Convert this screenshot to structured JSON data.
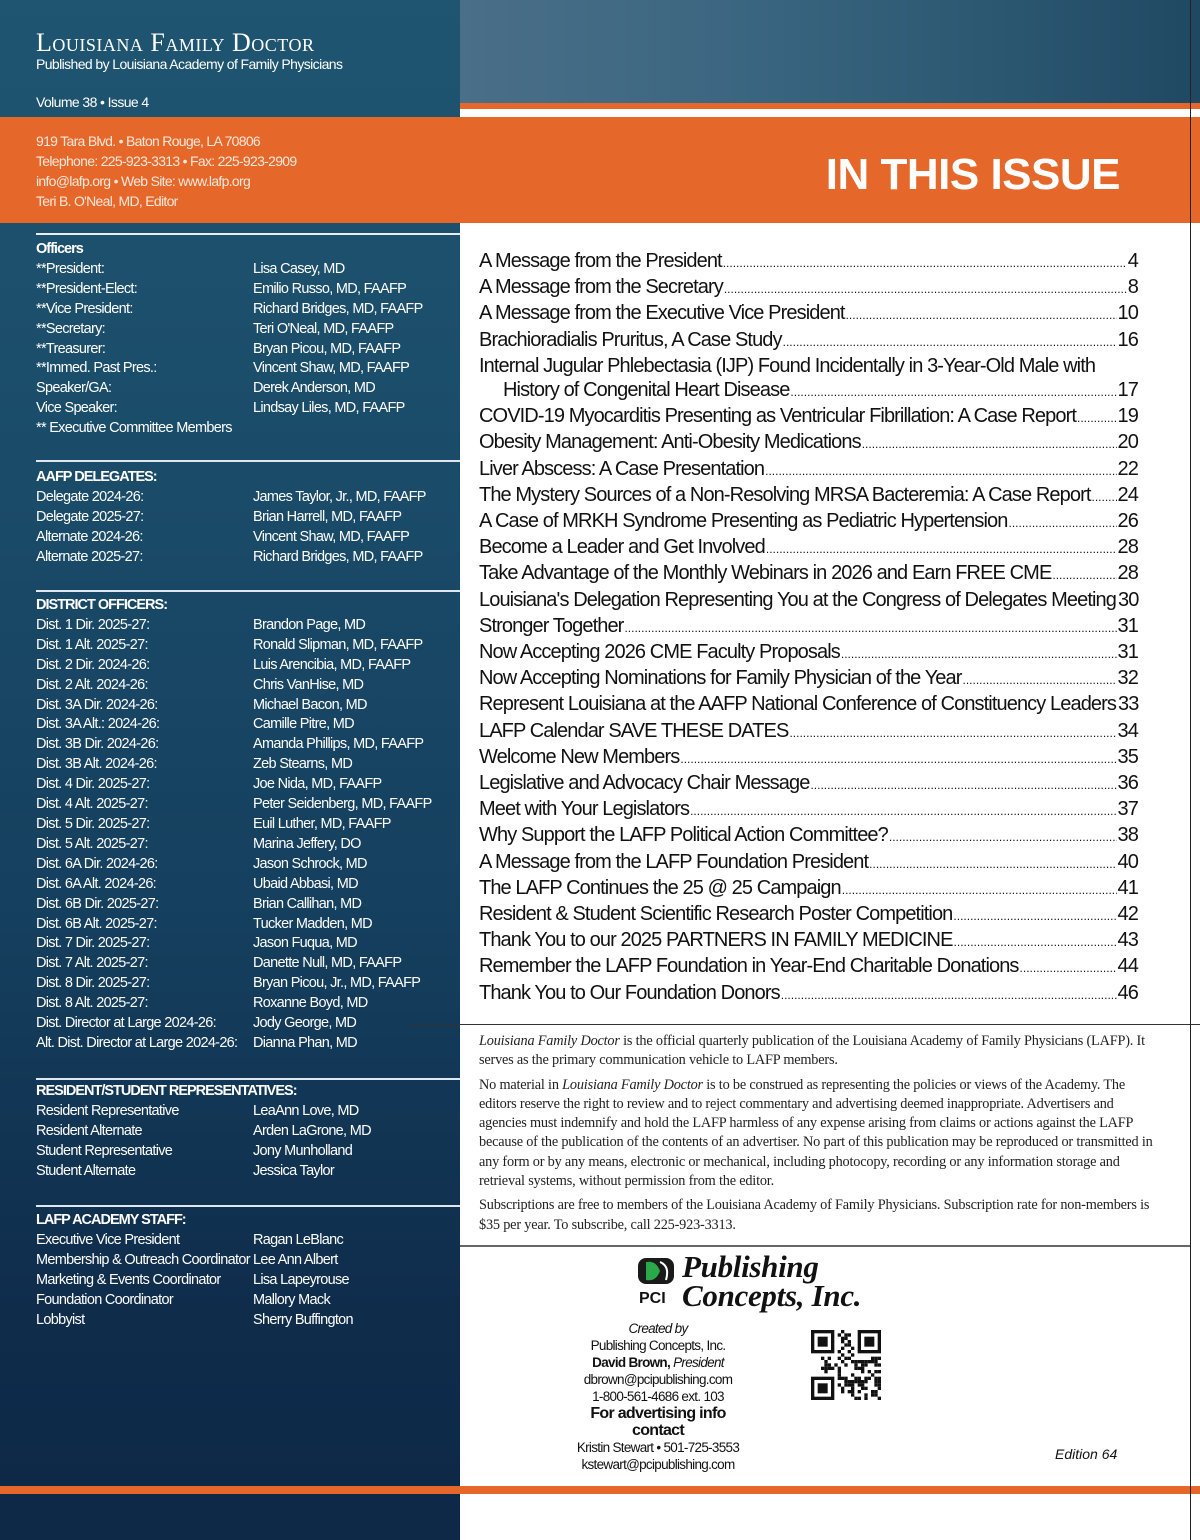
{
  "masthead": {
    "title": "Louisiana Family Doctor",
    "subtitle": "Published by Louisiana Academy of Family Physicians",
    "volume": "Volume 38 • Issue 4",
    "contact_lines": [
      "919 Tara Blvd. • Baton Rouge, LA 70806",
      "Telephone: 225-923-3313  • Fax: 225-923-2909",
      "info@lafp.org • Web Site: www.lafp.org",
      "Teri B. O'Neal, MD, Editor"
    ]
  },
  "banner": {
    "title": "IN THIS ISSUE"
  },
  "colors": {
    "orange": "#e5672a",
    "navy": "#153f5e"
  },
  "sections": [
    {
      "heading": "Officers",
      "rows": [
        [
          "**President:",
          "Lisa Casey, MD"
        ],
        [
          "**President-Elect:",
          "Emilio Russo, MD, FAAFP"
        ],
        [
          "**Vice President:",
          "Richard Bridges, MD, FAAFP"
        ],
        [
          "**Secretary:",
          "Teri O'Neal, MD, FAAFP"
        ],
        [
          "**Treasurer:",
          "Bryan Picou, MD, FAAFP"
        ],
        [
          "**Immed. Past Pres.:",
          "Vincent Shaw, MD, FAAFP"
        ],
        [
          "Speaker/GA:",
          "Derek Anderson, MD"
        ],
        [
          "Vice Speaker:",
          "Lindsay Liles, MD, FAAFP"
        ],
        [
          "** Executive Committee Members",
          ""
        ]
      ]
    },
    {
      "heading": "AAFP DELEGATES:",
      "rows": [
        [
          "Delegate  2024-26:",
          "James Taylor, Jr., MD, FAAFP"
        ],
        [
          "Delegate  2025-27:",
          "Brian Harrell, MD, FAAFP"
        ],
        [
          "Alternate  2024-26:",
          "Vincent Shaw, MD, FAAFP"
        ],
        [
          "Alternate  2025-27:",
          "Richard Bridges, MD, FAAFP"
        ]
      ]
    },
    {
      "heading": "DISTRICT OFFICERS:",
      "rows": [
        [
          "Dist. 1 Dir. 2025-27:",
          "Brandon Page, MD"
        ],
        [
          "Dist. 1 Alt. 2025-27:",
          "Ronald Slipman, MD, FAAFP"
        ],
        [
          "Dist. 2 Dir. 2024-26:",
          "Luis Arencibia, MD, FAAFP"
        ],
        [
          "Dist. 2 Alt. 2024-26:",
          "Chris VanHise, MD"
        ],
        [
          "Dist. 3A Dir. 2024-26:",
          "Michael Bacon, MD"
        ],
        [
          "Dist. 3A Alt.: 2024-26:",
          "Camille Pitre, MD"
        ],
        [
          "Dist. 3B Dir. 2024-26:",
          "Amanda Phillips, MD, FAAFP"
        ],
        [
          "Dist. 3B Alt. 2024-26:",
          "Zeb Stearns, MD"
        ],
        [
          "Dist. 4 Dir. 2025-27:",
          "Joe Nida, MD, FAAFP"
        ],
        [
          "Dist. 4 Alt. 2025-27:",
          "Peter Seidenberg, MD, FAAFP"
        ],
        [
          "Dist. 5 Dir. 2025-27:",
          "Euil Luther, MD, FAAFP"
        ],
        [
          "Dist. 5 Alt. 2025-27:",
          "Marina Jeffery, DO"
        ],
        [
          "Dist. 6A Dir. 2024-26:",
          "Jason Schrock, MD"
        ],
        [
          "Dist. 6A Alt. 2024-26:",
          "Ubaid Abbasi, MD"
        ],
        [
          "Dist. 6B Dir. 2025-27:",
          "Brian Callihan, MD"
        ],
        [
          "Dist. 6B Alt. 2025-27:",
          "Tucker Madden, MD"
        ],
        [
          "Dist. 7 Dir. 2025-27:",
          "Jason Fuqua, MD"
        ],
        [
          "Dist. 7 Alt. 2025-27:",
          "Danette Null, MD, FAAFP"
        ],
        [
          "Dist. 8 Dir. 2025-27:",
          "Bryan Picou, Jr., MD, FAAFP"
        ],
        [
          "Dist. 8 Alt. 2025-27:",
          "Roxanne Boyd, MD"
        ],
        [
          "Dist. Director at Large 2024-26:",
          "Jody George, MD"
        ],
        [
          "Alt. Dist. Director at Large 2024-26:",
          "Dianna Phan, MD"
        ]
      ]
    },
    {
      "heading": "RESIDENT/STUDENT REPRESENTATIVES:",
      "rows": [
        [
          "Resident Representative",
          "LeaAnn Love, MD"
        ],
        [
          "Resident Alternate",
          "Arden LaGrone, MD"
        ],
        [
          "Student Representative",
          "Jony Munholland"
        ],
        [
          "Student Alternate",
          "Jessica Taylor"
        ]
      ]
    },
    {
      "heading": "LAFP ACADEMY STAFF:",
      "rows": [
        [
          "Executive Vice President",
          "Ragan LeBlanc"
        ],
        [
          "Membership & Outreach Coordinator",
          "Lee Ann Albert"
        ],
        [
          "Marketing & Events Coordinator",
          "Lisa Lapeyrouse"
        ],
        [
          "Foundation Coordinator",
          "Mallory Mack"
        ],
        [
          "Lobbyist",
          "Sherry Buffington"
        ]
      ]
    }
  ],
  "toc": [
    {
      "title": "A Message from the President",
      "page": "4"
    },
    {
      "title": "A Message from the Secretary",
      "page": "8"
    },
    {
      "title": "A Message from the Executive Vice President",
      "page": "10"
    },
    {
      "title": "Brachioradialis Pruritus, A Case Study",
      "page": "16"
    },
    {
      "title": "Internal Jugular Phlebectasia (IJP) Found Incidentally in 3-Year-Old Male with",
      "title2": "History of Congenital Heart Disease",
      "page": "17"
    },
    {
      "title": "COVID-19 Myocarditis Presenting as Ventricular Fibrillation: A Case Report",
      "page": "19"
    },
    {
      "title": "Obesity Management: Anti-Obesity Medications",
      "page": "20"
    },
    {
      "title": "Liver Abscess: A Case Presentation",
      "page": "22"
    },
    {
      "title": "The Mystery Sources of a Non-Resolving MRSA Bacteremia: A Case Report",
      "page": "24"
    },
    {
      "title": "A Case of MRKH Syndrome Presenting as Pediatric Hypertension",
      "page": "26"
    },
    {
      "title": "Become a Leader and Get Involved",
      "page": "28"
    },
    {
      "title": "Take Advantage of the Monthly Webinars in 2026 and Earn FREE CME",
      "page": "28"
    },
    {
      "title": "Louisiana's Delegation Representing You at the Congress of Delegates Meeting",
      "page": "30"
    },
    {
      "title": "Stronger Together",
      "page": "31"
    },
    {
      "title": "Now Accepting 2026 CME Faculty Proposals",
      "page": "31"
    },
    {
      "title": "Now Accepting Nominations for Family Physician of the Year",
      "page": "32"
    },
    {
      "title": "Represent Louisiana at the AAFP National Conference of Constituency Leaders",
      "page": "33"
    },
    {
      "title": "LAFP Calendar SAVE THESE DATES",
      "page": "34"
    },
    {
      "title": "Welcome New Members",
      "page": "35"
    },
    {
      "title": "Legislative and Advocacy Chair Message",
      "page": "36"
    },
    {
      "title": "Meet with Your Legislators",
      "page": "37"
    },
    {
      "title": "Why Support the LAFP Political Action Committee?",
      "page": "38"
    },
    {
      "title": "A Message from the LAFP Foundation President",
      "page": "40"
    },
    {
      "title": "The LAFP Continues the 25 @ 25 Campaign",
      "page": "41"
    },
    {
      "title": "Resident & Student Scientific Research Poster Competition",
      "page": "42"
    },
    {
      "title": "Thank You to our 2025 PARTNERS IN FAMILY MEDICINE",
      "page": "43"
    },
    {
      "title": "Remember the LAFP Foundation in Year-End Charitable Donations",
      "page": "44"
    },
    {
      "title": "Thank You to Our Foundation Donors",
      "page": "46"
    }
  ],
  "disclaimer": {
    "p1_italic": "Louisiana Family Doctor",
    "p1_rest": " is the official quarterly publication of the Louisiana Academy of Family Physicians (LAFP). It serves as the primary communication vehicle to LAFP members.",
    "p2_pre": "No material in ",
    "p2_italic": "Louisiana Family Doctor",
    "p2_rest": " is to be construed as representing the policies or views of the Academy. The editors reserve the right to review and to reject commentary and advertising deemed inappropriate. Advertisers and agencies must indemnify and hold the LAFP harmless of any expense arising from claims or actions against the LAFP because of the publication of the contents of an advertiser. No part of this publication may be reproduced or transmitted in any form or by any means, electronic or mechanical, including photocopy, recording or any information storage and retrieval systems, without permission from the editor.",
    "p3": "Subscriptions are free to members of the Louisiana Academy of Family Physicians. Subscription rate for non-members is $35 per year. To subscribe, call 225-923-3313."
  },
  "publisher": {
    "logo_letters": "PCI",
    "logo_line1": "Publishing",
    "logo_line2": "Concepts, Inc.",
    "created_by": "Created by",
    "company": "Publishing Concepts, Inc.",
    "president_name": "David Brown,",
    "president_title": "President",
    "email": "dbrown@pcipublishing.com",
    "phone": "1-800-561-4686 ext. 103",
    "advertising": "For advertising info contact",
    "ad_contact": "Kristin Stewart • 501-725-3553",
    "ad_email": "kstewart@pcipublishing.com",
    "edition": "Edition 64"
  }
}
